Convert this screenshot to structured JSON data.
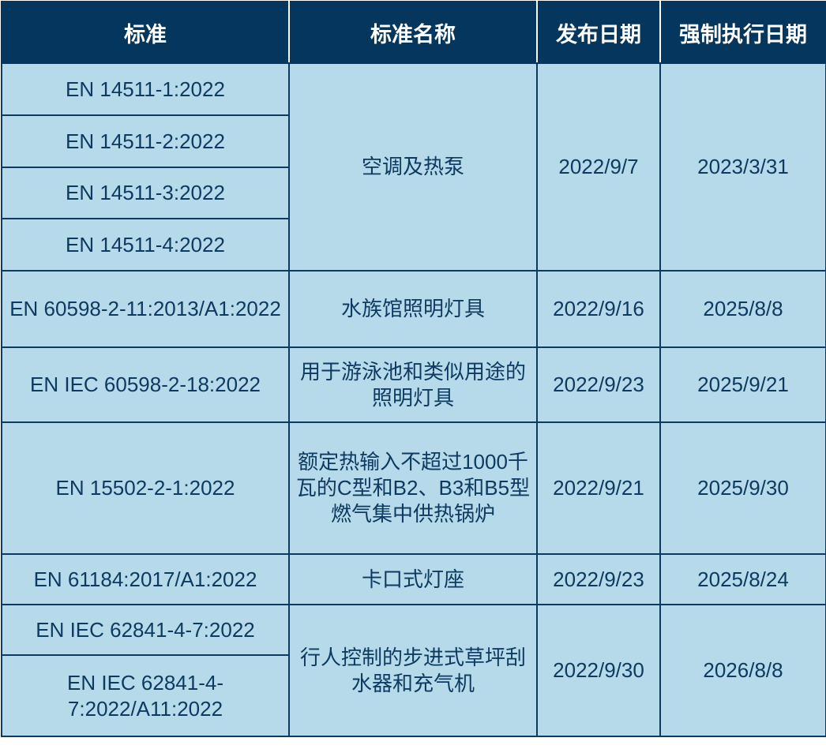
{
  "headers": [
    "标准",
    "标准名称",
    "发布日期",
    "强制执行日期"
  ],
  "rows": [
    {
      "standards": [
        "EN 14511-1:2022",
        "EN 14511-2:2022",
        "EN 14511-3:2022",
        "EN 14511-4:2022"
      ],
      "name": "空调及热泵",
      "published": "2022/9/7",
      "enforced": "2023/3/31"
    },
    {
      "standards": [
        "EN 60598-2-11:2013/A1:2022"
      ],
      "name": "水族馆照明灯具",
      "published": "2022/9/16",
      "enforced": "2025/8/8"
    },
    {
      "standards": [
        "EN IEC 60598-2-18:2022"
      ],
      "name": "用于游泳池和类似用途的照明灯具",
      "published": "2022/9/23",
      "enforced": "2025/9/21"
    },
    {
      "standards": [
        "EN 15502-2-1:2022"
      ],
      "name": "额定热输入不超过1000千瓦的C型和B2、B3和B5型燃气集中供热锅炉",
      "published": "2022/9/21",
      "enforced": "2025/9/30"
    },
    {
      "standards": [
        "EN 61184:2017/A1:2022"
      ],
      "name": "卡口式灯座",
      "published": "2022/9/23",
      "enforced": "2025/8/24"
    },
    {
      "standards": [
        "EN IEC 62841-4-7:2022",
        "EN IEC 62841-4-7:2022/A11:2022"
      ],
      "name": "行人控制的步进式草坪刮水器和充气机",
      "published": "2022/9/30",
      "enforced": "2026/8/8"
    }
  ],
  "colors": {
    "header_bg": "#04365e",
    "cell_bg": "#b7daeb",
    "text": "#0d3a60"
  }
}
